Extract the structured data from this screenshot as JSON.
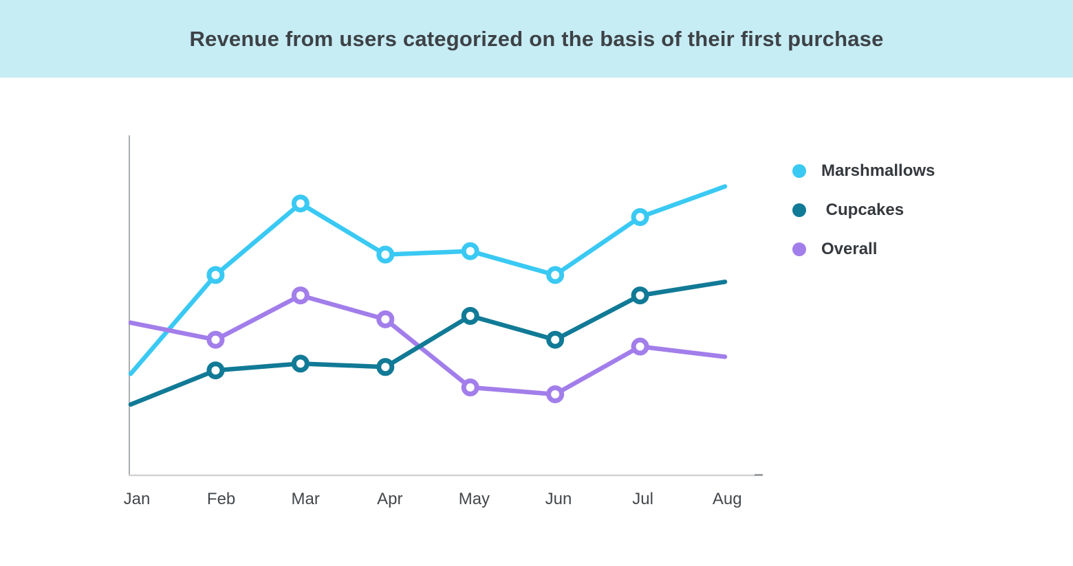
{
  "banner": {
    "title": "Revenue from users categorized on the basis of their first purchase",
    "background_color": "#c6ecf4",
    "title_color": "#3d4246"
  },
  "chart_data": {
    "type": "line",
    "title": "Revenue from users categorized on the basis of their first purchase",
    "categories": [
      "Jan",
      "Feb",
      "Mar",
      "Apr",
      "May",
      "Jun",
      "Jul",
      "Aug"
    ],
    "series": [
      {
        "name": "Marshmallows",
        "color": "#3ac9f3",
        "values": [
          30,
          59,
          80,
          65,
          66,
          59,
          76,
          85
        ]
      },
      {
        "name": "Cupcakes",
        "color": "#117a96",
        "values": [
          21,
          31,
          33,
          32,
          47,
          40,
          53,
          57
        ]
      },
      {
        "name": "Overall",
        "color": "#a27eea",
        "values": [
          45,
          40,
          53,
          46,
          26,
          24,
          38,
          35
        ]
      }
    ],
    "ylim": [
      0,
      100
    ],
    "y_axis_note": "no y-axis tick labels or gridlines shown; values estimated on 0-100 relative scale",
    "grid": false,
    "legend_position": "right",
    "marker_style": "open white circles on Feb through Jul points only",
    "x_axis_color": "#d2d2d4",
    "y_axis_color": "#a9adb0"
  },
  "legend": {
    "items": [
      {
        "label": "Marshmallows",
        "color": "#3ac9f3"
      },
      {
        "label": " Cupcakes",
        "color": "#117a96"
      },
      {
        "label": "Overall",
        "color": "#a27eea"
      }
    ]
  }
}
